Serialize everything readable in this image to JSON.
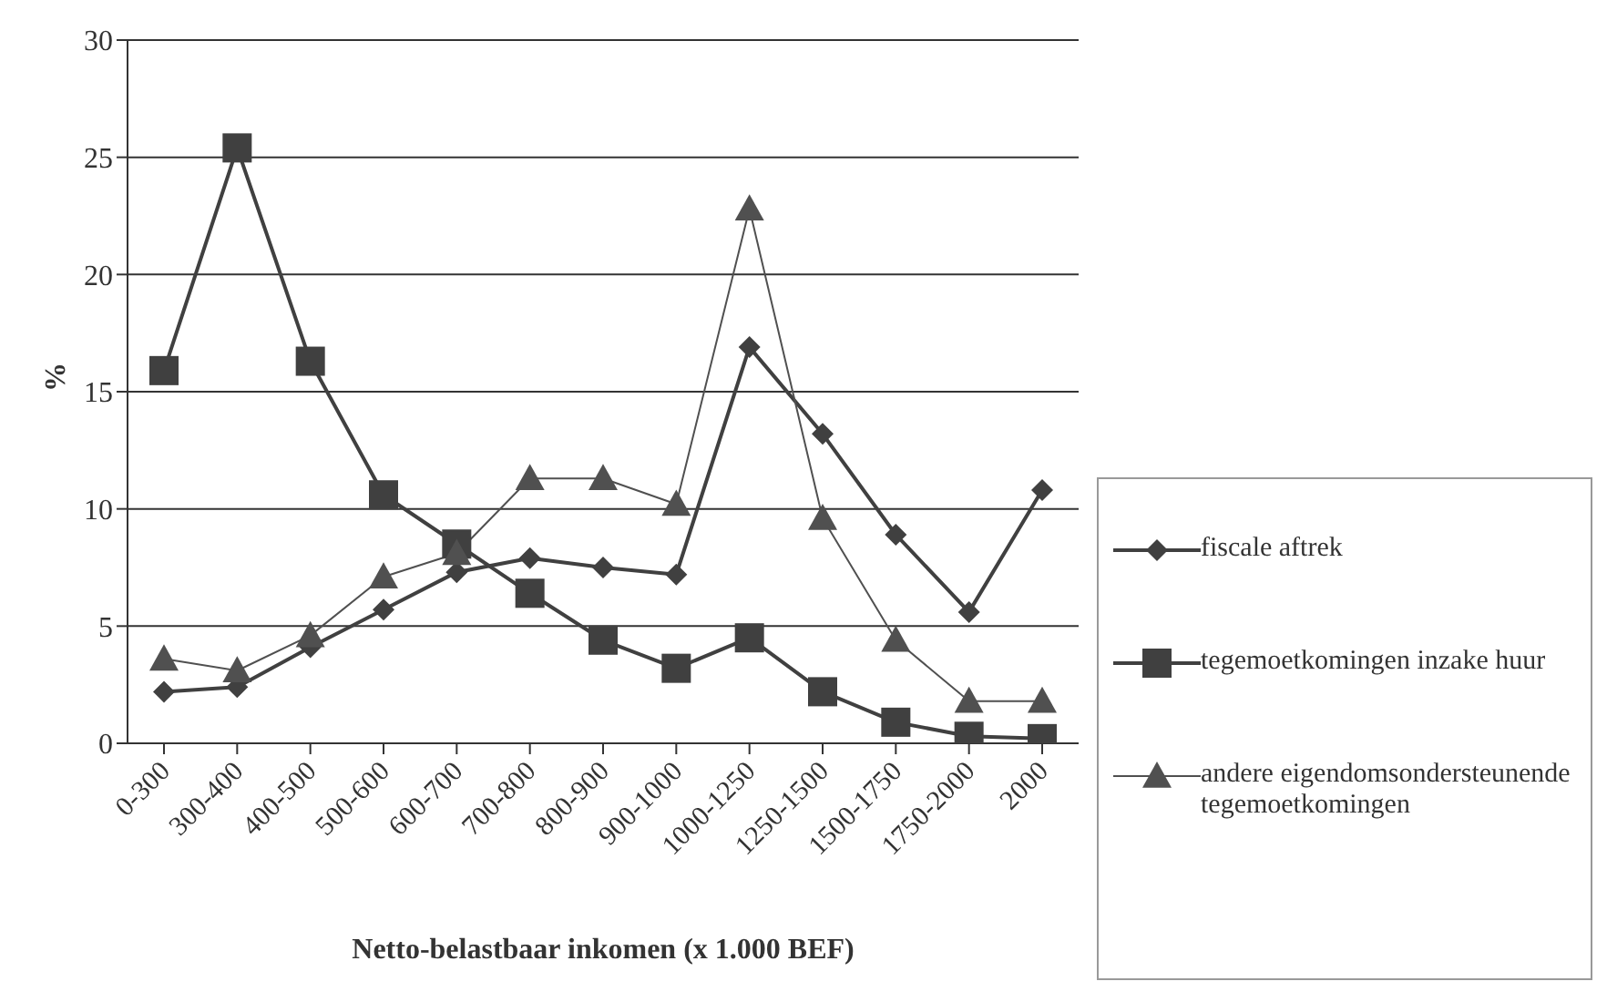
{
  "chart_data": {
    "type": "line",
    "xlabel": "Netto-belastbaar inkomen (x 1.000 BEF)",
    "ylabel": "%",
    "categories": [
      "0-300",
      "300-400",
      "400-500",
      "500-600",
      "600-700",
      "700-800",
      "800-900",
      "900-1000",
      "1000-1250",
      "1250-1500",
      "1500-1750",
      "1750-2000",
      "2000"
    ],
    "series": [
      {
        "name": "fiscale aftrek",
        "color": "#404040",
        "marker": "diamond",
        "values": [
          2.2,
          2.4,
          4.1,
          5.7,
          7.3,
          7.9,
          7.5,
          7.2,
          16.9,
          13.2,
          8.9,
          5.6,
          10.8
        ]
      },
      {
        "name": "tegemoetkomingen inzake huur",
        "color": "#404040",
        "marker": "square",
        "values": [
          15.9,
          25.4,
          16.3,
          10.6,
          8.5,
          6.4,
          4.4,
          3.2,
          4.5,
          2.2,
          0.9,
          0.3,
          0.2
        ]
      },
      {
        "name": "andere eigendomsondersteunende tegemoetkomingen",
        "color": "#505050",
        "marker": "triangle",
        "values": [
          3.6,
          3.1,
          4.6,
          7.1,
          8.1,
          11.3,
          11.3,
          10.2,
          22.8,
          9.6,
          4.4,
          1.8,
          1.8
        ]
      }
    ],
    "ylim": [
      0,
      30
    ],
    "yticks": [
      0,
      5,
      10,
      15,
      20,
      25,
      30
    ],
    "grid": "y",
    "legend": "right"
  }
}
